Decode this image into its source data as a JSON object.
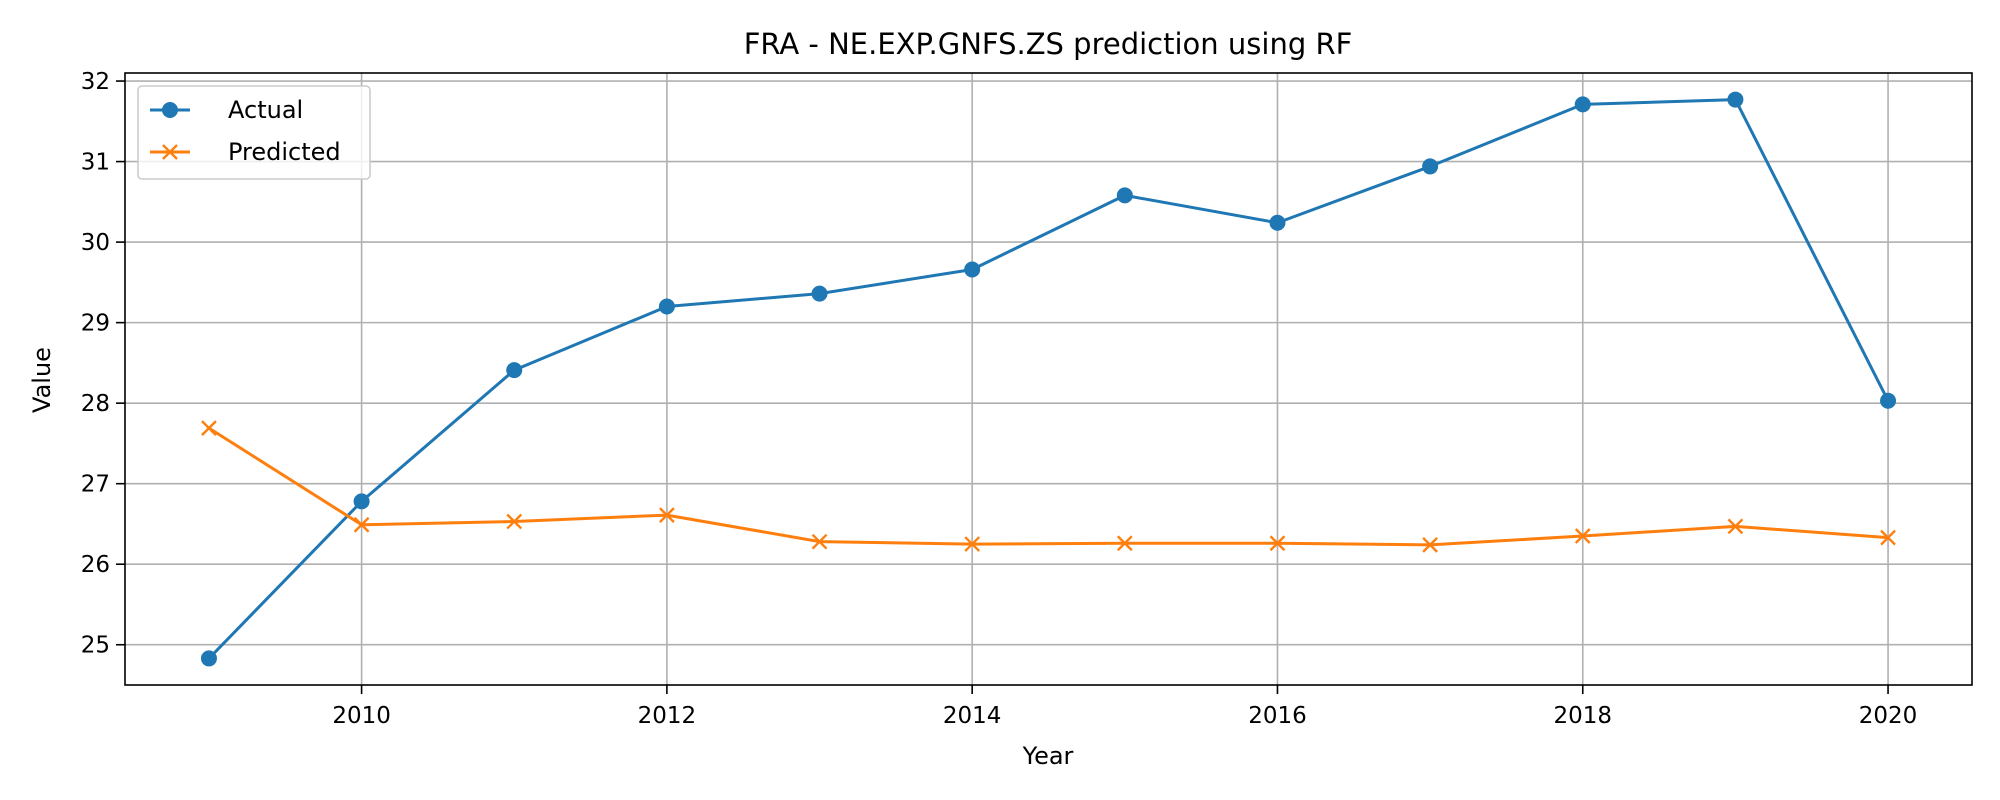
{
  "chart_data": {
    "type": "line",
    "title": "FRA - NE.EXP.GNFS.ZS prediction using RF",
    "xlabel": "Year",
    "ylabel": "Value",
    "xlim": [
      2008.45,
      2020.55
    ],
    "ylim": [
      24.5,
      32.1
    ],
    "x_ticks": [
      2010,
      2012,
      2014,
      2016,
      2018,
      2020
    ],
    "y_ticks": [
      25,
      26,
      27,
      28,
      29,
      30,
      31,
      32
    ],
    "grid": true,
    "legend_position": "top-left",
    "x": [
      2009,
      2010,
      2011,
      2012,
      2013,
      2014,
      2015,
      2016,
      2017,
      2018,
      2019,
      2020
    ],
    "series": [
      {
        "name": "Actual",
        "marker": "circle",
        "color": "#1f77b4",
        "values": [
          24.83,
          26.78,
          28.41,
          29.2,
          29.36,
          29.66,
          30.58,
          30.24,
          30.94,
          31.71,
          31.77,
          28.03
        ]
      },
      {
        "name": "Predicted",
        "marker": "x",
        "color": "#ff7f0e",
        "values": [
          27.69,
          26.49,
          26.53,
          26.61,
          26.28,
          26.25,
          26.26,
          26.26,
          26.24,
          26.35,
          26.47,
          26.33
        ]
      }
    ]
  }
}
